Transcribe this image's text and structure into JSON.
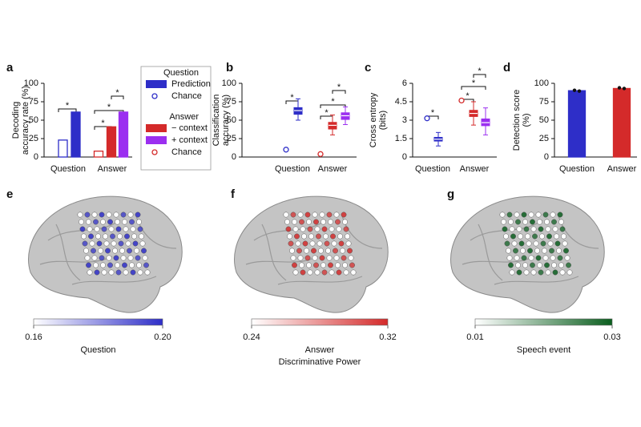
{
  "chart_data": [
    {
      "type": "bar",
      "label": "a",
      "ylabel": [
        "Decoding",
        "accuracy rate (%)"
      ],
      "categories": [
        "Question",
        "Answer"
      ],
      "ylim": [
        0,
        100
      ],
      "yticks": [
        0,
        25,
        50,
        75,
        100
      ],
      "series": [
        {
          "color": "#2e2ec8",
          "fill": "none",
          "values": [
            23,
            null
          ]
        },
        {
          "color": "#2e2ec8",
          "values": [
            61,
            null
          ]
        },
        {
          "color": "#d42a2a",
          "fill": "none",
          "values": [
            null,
            8
          ]
        },
        {
          "color": "#d42a2a",
          "values": [
            null,
            41
          ]
        },
        {
          "color": "#9b2ff0",
          "values": [
            null,
            61
          ]
        }
      ],
      "annotations": [
        "*",
        "*",
        "*",
        "*"
      ]
    },
    {
      "type": "box",
      "label": "b",
      "ylabel": [
        "Classification",
        "accuracy (%)"
      ],
      "categories": [
        "Question",
        "Answer"
      ],
      "ylim": [
        0,
        100
      ],
      "yticks": [
        0,
        25,
        50,
        75,
        100
      ],
      "series": [
        {
          "color": "#2e2ec8",
          "values": [
            {
              "whislo": 50,
              "q1": 58,
              "med": 63,
              "q3": 67,
              "whishi": 79
            },
            null
          ],
          "chance": [
            10,
            null
          ]
        },
        {
          "color": "#d42a2a",
          "values": [
            null,
            {
              "whislo": 30,
              "q1": 38,
              "med": 43,
              "q3": 47,
              "whishi": 57
            }
          ],
          "chance": [
            null,
            4
          ]
        },
        {
          "color": "#9b2ff0",
          "values": [
            null,
            {
              "whislo": 44,
              "q1": 51,
              "med": 56,
              "q3": 60,
              "whishi": 68
            }
          ]
        }
      ],
      "annotations": [
        "*",
        "*",
        "*",
        "*"
      ]
    },
    {
      "type": "box",
      "label": "c",
      "ylabel": [
        "Cross entropy",
        "(bits)"
      ],
      "categories": [
        "Question",
        "Answer"
      ],
      "ylim": [
        0,
        6
      ],
      "yticks": [
        0,
        1.5,
        3,
        4.5,
        6
      ],
      "series": [
        {
          "color": "#2e2ec8",
          "values": [
            {
              "whislo": 0.9,
              "q1": 1.3,
              "med": 1.45,
              "q3": 1.6,
              "whishi": 2.0
            },
            null
          ],
          "chance": [
            3.15,
            null
          ]
        },
        {
          "color": "#d42a2a",
          "values": [
            null,
            {
              "whislo": 2.6,
              "q1": 3.3,
              "med": 3.55,
              "q3": 3.8,
              "whishi": 4.5
            }
          ],
          "chance": [
            null,
            4.6
          ]
        },
        {
          "color": "#9b2ff0",
          "values": [
            null,
            {
              "whislo": 1.8,
              "q1": 2.55,
              "med": 2.8,
              "q3": 3.1,
              "whishi": 4.0
            }
          ]
        }
      ],
      "annotations": [
        "*",
        "*",
        "*",
        "*"
      ]
    },
    {
      "type": "bar",
      "label": "d",
      "ylabel": [
        "Detection score",
        "(%)"
      ],
      "categories": [
        "Question",
        "Answer"
      ],
      "ylim": [
        0,
        100
      ],
      "yticks": [
        0,
        25,
        50,
        75,
        100
      ],
      "series": [
        {
          "color": "#2e2ec8",
          "values": [
            90,
            null
          ],
          "points": [
            [
              90.5,
              89.5
            ],
            null
          ]
        },
        {
          "color": "#d42a2a",
          "values": [
            null,
            93
          ],
          "points": [
            null,
            [
              94,
              93
            ]
          ]
        }
      ]
    },
    {
      "type": "brain",
      "label": "e",
      "colorbar": {
        "colors": [
          "#ffffff",
          "#2e2ec8"
        ],
        "clim": [
          0.16,
          0.2
        ],
        "ticks": [
          0.16,
          {
            "value": 0.2,
            "label": "0.20"
          }
        ],
        "label": "Question"
      }
    },
    {
      "type": "brain",
      "label": "f",
      "colorbar": {
        "colors": [
          "#ffffff",
          "#d42a2a"
        ],
        "clim": [
          0.24,
          0.32
        ],
        "ticks": [
          0.24,
          0.32
        ],
        "label": "Answer"
      },
      "xlabel": "Discriminative Power"
    },
    {
      "type": "brain",
      "label": "g",
      "colorbar": {
        "colors": [
          "#ffffff",
          "#0a5e1e"
        ],
        "clim": [
          0.01,
          0.03
        ],
        "ticks": [
          0.01,
          0.03
        ],
        "label": "Speech event"
      }
    }
  ],
  "legend": {
    "groups": [
      {
        "title": "Question",
        "entries": [
          {
            "name": "Prediction",
            "color": "#2e2ec8",
            "marker": "box"
          },
          {
            "name": "Chance",
            "color": "#2e2ec8",
            "marker": "circle"
          }
        ]
      },
      {
        "title": "Answer",
        "entries": [
          {
            "name": "− context",
            "color": "#d42a2a",
            "marker": "box"
          },
          {
            "name": "+ context",
            "color": "#9b2ff0",
            "marker": "box"
          },
          {
            "name": "Chance",
            "color": "#d42a2a",
            "marker": "circle"
          }
        ]
      }
    ]
  }
}
